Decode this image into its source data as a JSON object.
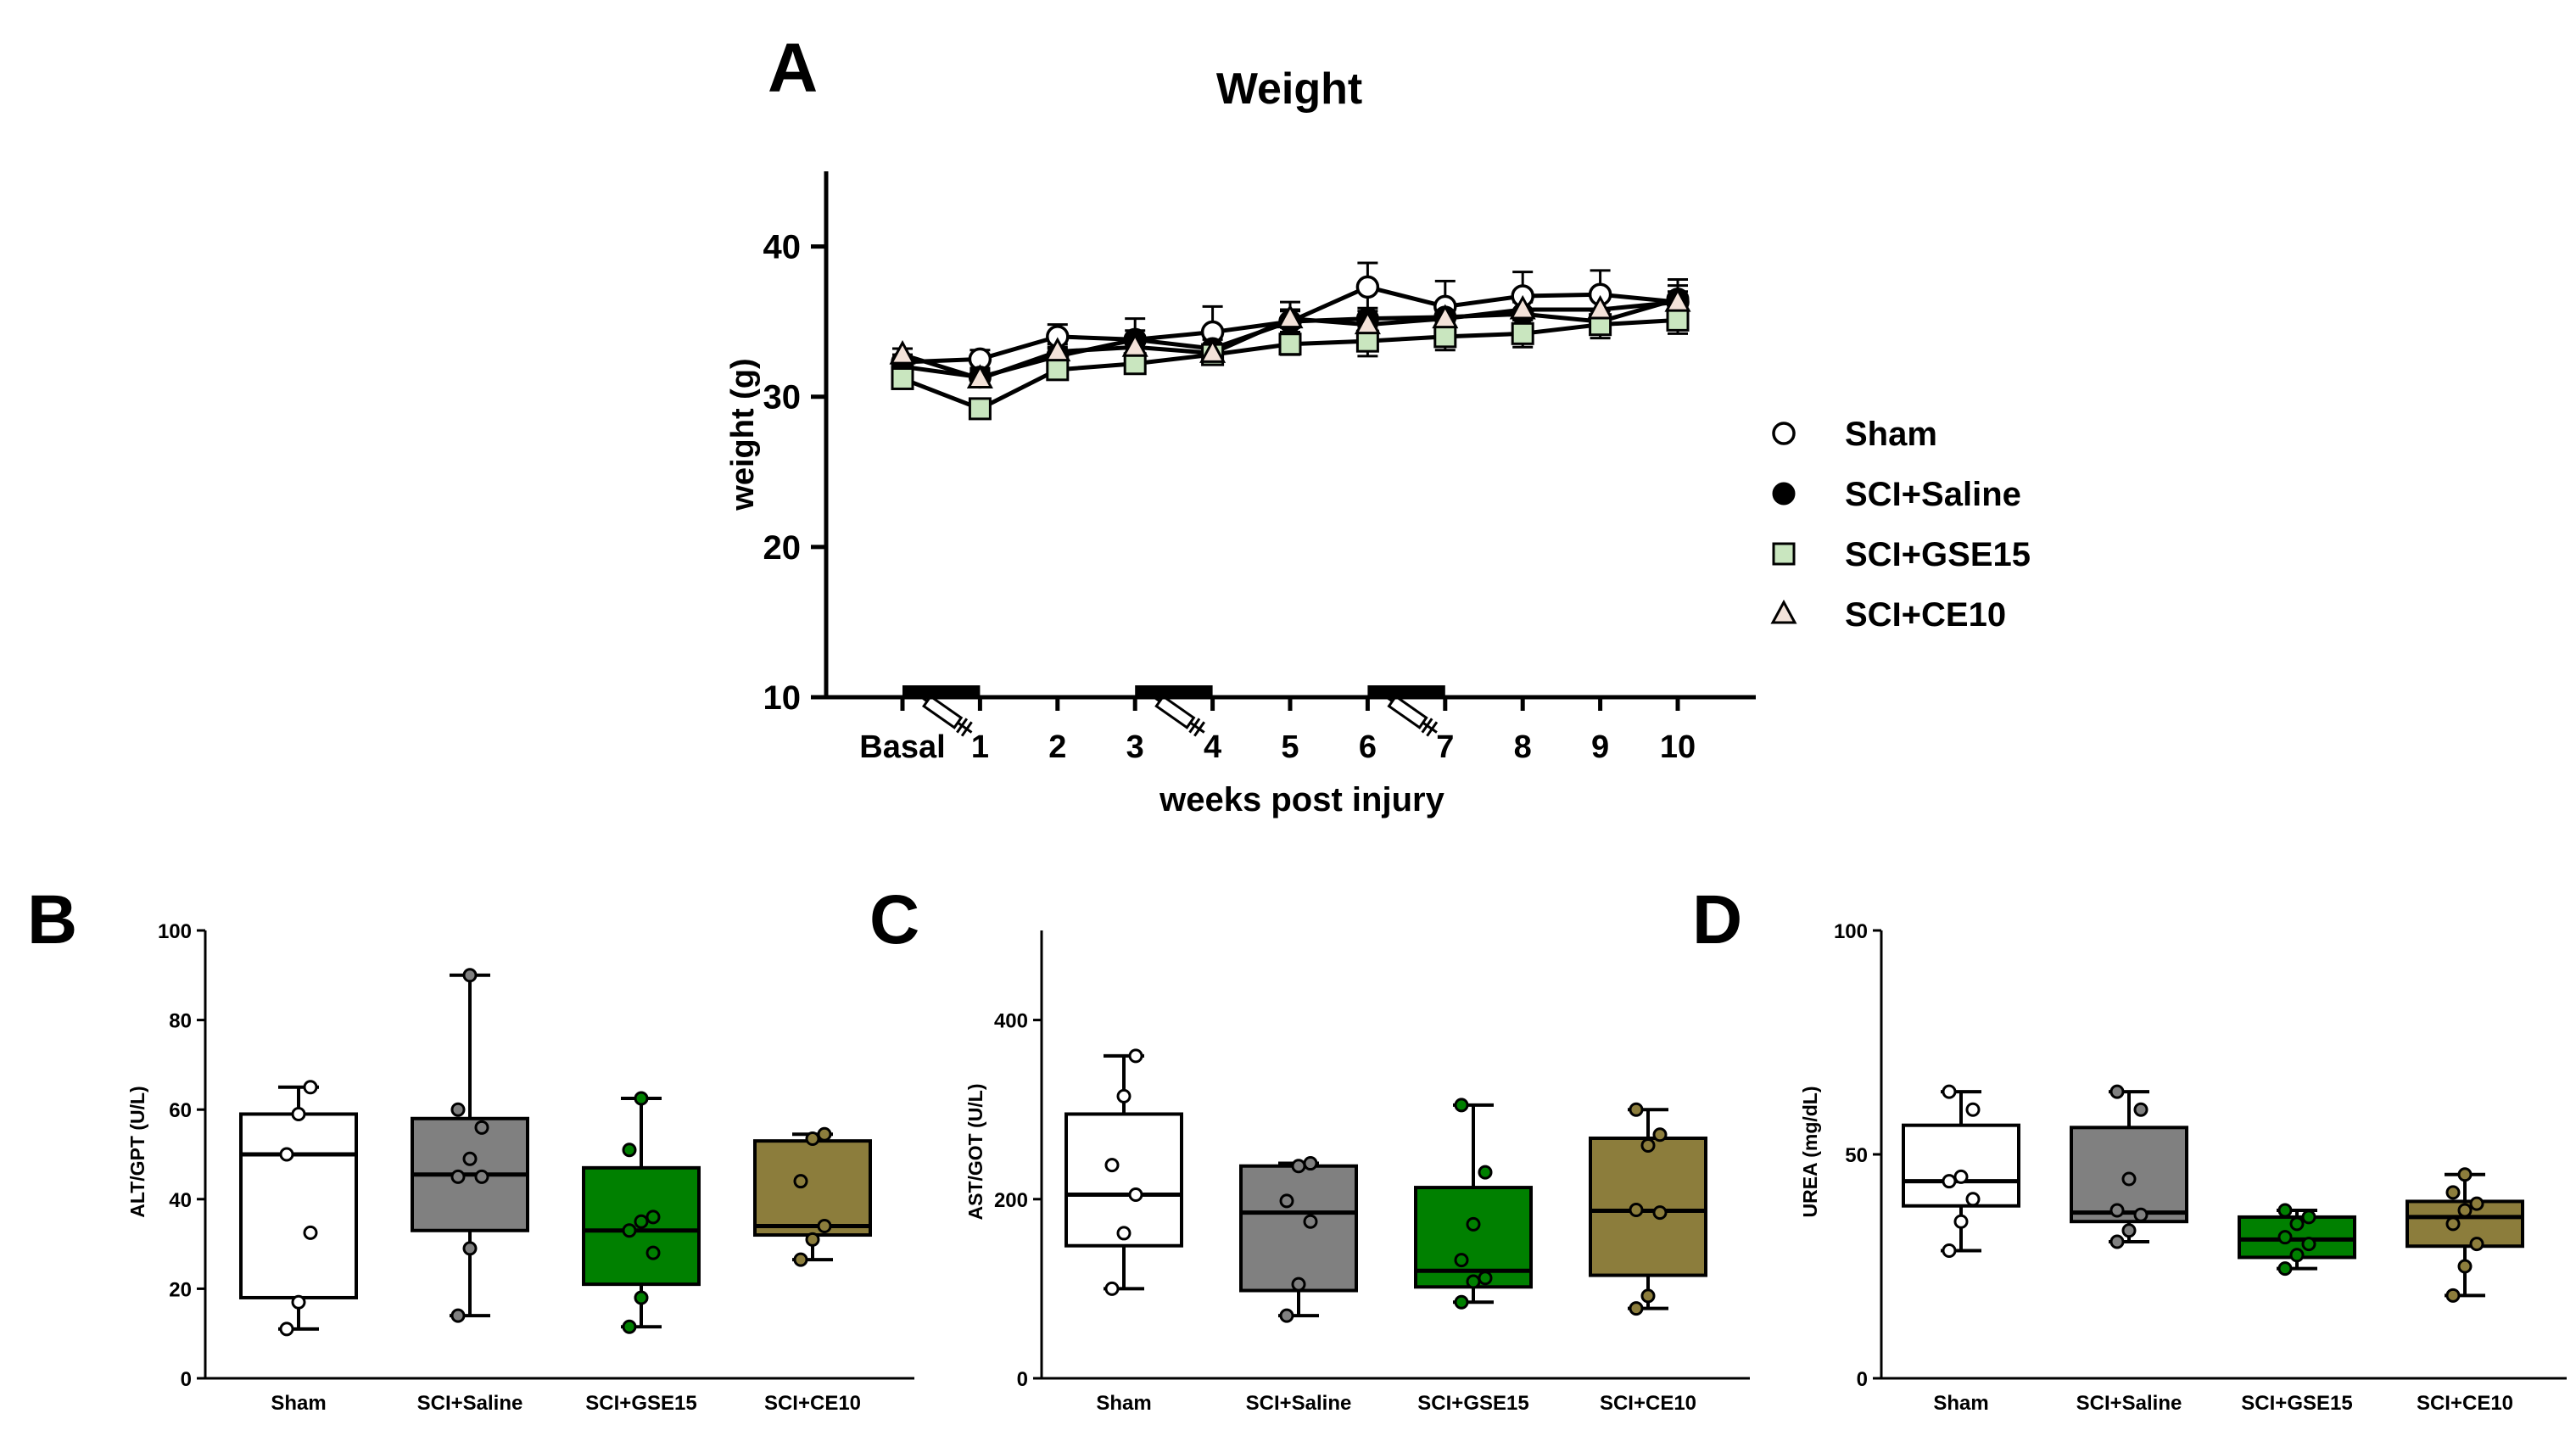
{
  "colors": {
    "axis": "#000000",
    "sham": "#ffffff",
    "saline": "#808080",
    "gse": "#008000",
    "ce": "#8c7d3c",
    "gse_marker": "#c9e6bf",
    "ce_marker": "#f3e2d9"
  },
  "chart_data": [
    {
      "type": "line",
      "panel": "A",
      "title": "Weight",
      "xlabel": "weeks post injury",
      "ylabel": "weight (g)",
      "ylim": [
        10,
        45
      ],
      "yticks": [
        10,
        20,
        30,
        40
      ],
      "categories": [
        "Basal",
        "1",
        "2",
        "3",
        "4",
        "5",
        "6",
        "7",
        "8",
        "9",
        "10"
      ],
      "treatment_bars": [
        [
          0,
          1
        ],
        [
          3,
          4
        ],
        [
          6,
          7
        ]
      ],
      "series": [
        {
          "name": "Sham",
          "marker": "circle",
          "values": [
            32.3,
            32.5,
            34.0,
            33.8,
            34.3,
            35.0,
            37.3,
            36.0,
            36.7,
            36.8,
            36.3
          ],
          "error": [
            0.5,
            0.6,
            0.8,
            1.4,
            1.7,
            1.3,
            1.6,
            1.7,
            1.6,
            1.6,
            1.5
          ]
        },
        {
          "name": "SCI+Saline",
          "marker": "filled-circle",
          "values": [
            32.0,
            31.3,
            32.7,
            33.8,
            33.2,
            35.0,
            35.2,
            35.3,
            35.5,
            35.0,
            36.5
          ],
          "error": [
            0.5,
            0.5,
            0.6,
            0.6,
            0.6,
            0.7,
            0.7,
            0.8,
            0.8,
            0.8,
            0.9
          ]
        },
        {
          "name": "SCI+GSE15",
          "marker": "square",
          "values": [
            31.2,
            29.2,
            31.8,
            32.2,
            32.8,
            33.5,
            33.7,
            34.0,
            34.2,
            34.8,
            35.1
          ],
          "error": [
            0.5,
            0.6,
            0.6,
            0.6,
            0.5,
            0.7,
            1.0,
            0.9,
            0.9,
            0.9,
            0.9
          ]
        },
        {
          "name": "SCI+CE10",
          "marker": "triangle",
          "values": [
            32.8,
            31.2,
            33.0,
            33.3,
            32.9,
            35.2,
            34.8,
            35.2,
            35.8,
            35.8,
            36.3
          ],
          "error": [
            0.4,
            0.5,
            0.5,
            0.5,
            0.5,
            0.6,
            0.6,
            0.6,
            0.6,
            0.7,
            0.7
          ]
        }
      ]
    },
    {
      "type": "box",
      "panel": "B",
      "ylabel": "ALT/GPT (U/L)",
      "ylim": [
        0,
        100
      ],
      "yticks": [
        0,
        20,
        40,
        60,
        80,
        100
      ],
      "categories": [
        "Sham",
        "SCI+Saline",
        "SCI+GSE15",
        "SCI+CE10"
      ],
      "boxes": [
        {
          "name": "Sham",
          "min": 11,
          "q1": 18,
          "median": 50,
          "q3": 59,
          "max": 65,
          "points": [
            11,
            17,
            32.5,
            50,
            59,
            65
          ]
        },
        {
          "name": "SCI+Saline",
          "min": 14,
          "q1": 33,
          "median": 45.5,
          "q3": 58,
          "max": 90,
          "points": [
            14,
            29,
            45,
            45,
            49,
            56,
            60,
            90
          ]
        },
        {
          "name": "SCI+GSE15",
          "min": 11.5,
          "q1": 21,
          "median": 33,
          "q3": 47,
          "max": 62.5,
          "points": [
            11.5,
            18,
            28,
            33,
            35,
            36,
            51,
            62.5
          ]
        },
        {
          "name": "SCI+CE10",
          "min": 26.5,
          "q1": 32,
          "median": 34,
          "q3": 53,
          "max": 54.5,
          "points": [
            26.5,
            31,
            34,
            44,
            53.5,
            54.5
          ]
        }
      ]
    },
    {
      "type": "box",
      "panel": "C",
      "ylabel": "AST/GOT (U/L)",
      "ylim": [
        0,
        500
      ],
      "yticks": [
        0,
        200,
        400
      ],
      "categories": [
        "Sham",
        "SCI+Saline",
        "SCI+GSE15",
        "SCI+CE10"
      ],
      "boxes": [
        {
          "name": "Sham",
          "min": 100,
          "q1": 148,
          "median": 205,
          "q3": 295,
          "max": 360,
          "points": [
            100,
            162,
            205,
            238,
            315,
            360
          ]
        },
        {
          "name": "SCI+Saline",
          "min": 70,
          "q1": 98,
          "median": 185,
          "q3": 237,
          "max": 240,
          "points": [
            70,
            105,
            175,
            198,
            237,
            240
          ]
        },
        {
          "name": "SCI+GSE15",
          "min": 85,
          "q1": 102,
          "median": 120,
          "q3": 213,
          "max": 305,
          "points": [
            85,
            108,
            112,
            132,
            172,
            230,
            305
          ]
        },
        {
          "name": "SCI+CE10",
          "min": 78,
          "q1": 115,
          "median": 187,
          "q3": 268,
          "max": 300,
          "points": [
            78,
            92,
            185,
            188,
            260,
            272,
            300
          ]
        }
      ]
    },
    {
      "type": "box",
      "panel": "D",
      "ylabel": "UREA (mg/dL)",
      "ylim": [
        0,
        100
      ],
      "yticks": [
        0,
        50,
        100
      ],
      "categories": [
        "Sham",
        "SCI+Saline",
        "SCI+GSE15",
        "SCI+CE10"
      ],
      "boxes": [
        {
          "name": "Sham",
          "min": 28.5,
          "q1": 38.5,
          "median": 44,
          "q3": 56.5,
          "max": 64,
          "points": [
            28.5,
            35,
            40,
            44,
            45,
            60,
            64
          ]
        },
        {
          "name": "SCI+Saline",
          "min": 30.5,
          "q1": 35,
          "median": 37,
          "q3": 56,
          "max": 64,
          "points": [
            30.5,
            33,
            36.5,
            37.5,
            44.5,
            60,
            64
          ]
        },
        {
          "name": "SCI+GSE15",
          "min": 24.5,
          "q1": 27,
          "median": 31,
          "q3": 36,
          "max": 37.5,
          "points": [
            24.5,
            27.5,
            30,
            31.5,
            34.5,
            36,
            37.5
          ]
        },
        {
          "name": "SCI+CE10",
          "min": 18.5,
          "q1": 29.5,
          "median": 36,
          "q3": 39.5,
          "max": 45.5,
          "points": [
            18.5,
            25,
            30,
            34.5,
            37.5,
            39,
            41.5,
            45.5
          ]
        }
      ]
    }
  ]
}
